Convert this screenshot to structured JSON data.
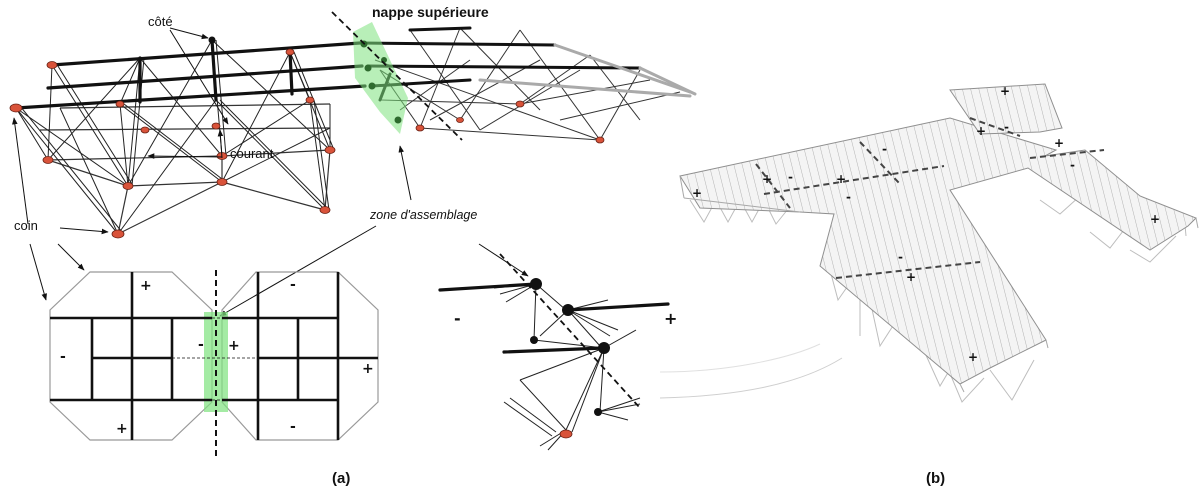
{
  "labels": {
    "cote": "côté",
    "nappe": "nappe supérieure",
    "courant": "courant",
    "coin": "coin",
    "zone": "zone d'assemblage"
  },
  "signs": {
    "plus": "+",
    "minus": "-"
  },
  "captions": {
    "a": "(a)",
    "b": "(b)"
  },
  "colors": {
    "green_zone": "#7de27d",
    "node_red": "#d9533a",
    "frame_gray": "#9a9a9a"
  }
}
